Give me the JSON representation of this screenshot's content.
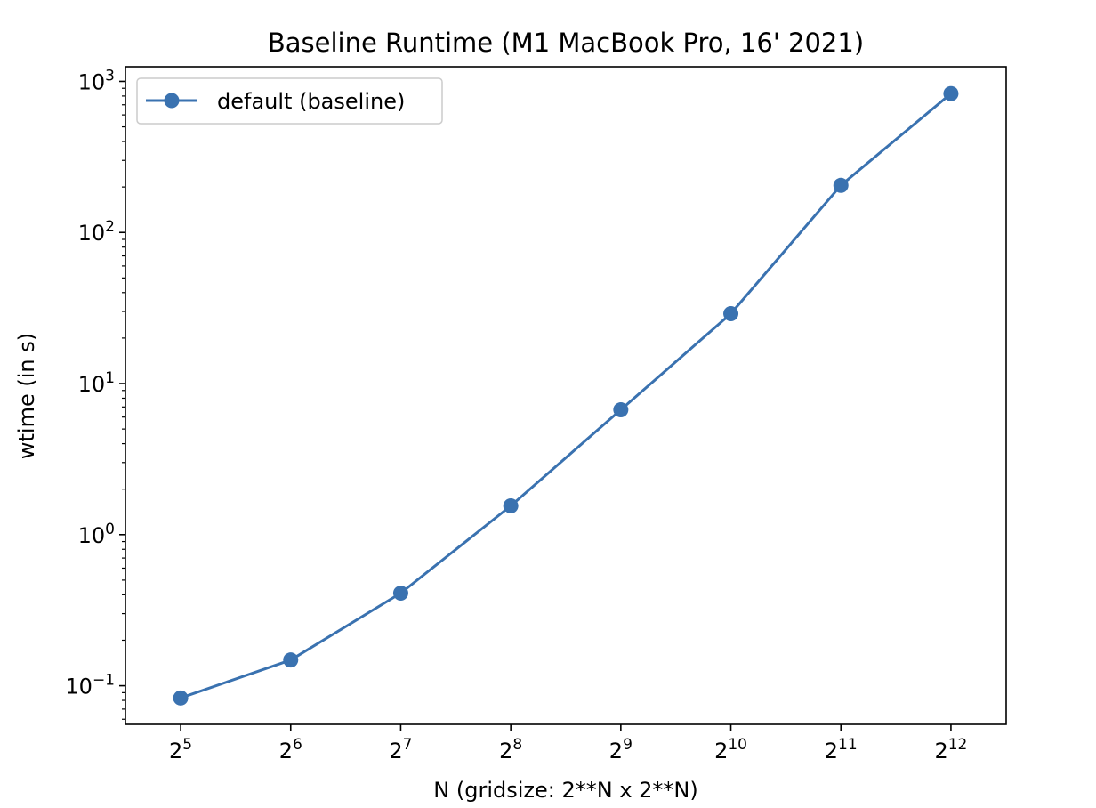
{
  "chart_data": {
    "type": "line",
    "title": "Baseline Runtime (M1 MacBook Pro, 16' 2021)",
    "xlabel": "N (gridsize: 2**N x 2**N)",
    "ylabel": "wtime (in s)",
    "x_scale": "log2",
    "y_scale": "log10",
    "x": [
      32,
      64,
      128,
      256,
      512,
      1024,
      2048,
      4096
    ],
    "x_ticks": [
      {
        "value": 32,
        "base": "2",
        "exp": "5"
      },
      {
        "value": 64,
        "base": "2",
        "exp": "6"
      },
      {
        "value": 128,
        "base": "2",
        "exp": "7"
      },
      {
        "value": 256,
        "base": "2",
        "exp": "8"
      },
      {
        "value": 512,
        "base": "2",
        "exp": "9"
      },
      {
        "value": 1024,
        "base": "2",
        "exp": "10"
      },
      {
        "value": 2048,
        "base": "2",
        "exp": "11"
      },
      {
        "value": 4096,
        "base": "2",
        "exp": "12"
      }
    ],
    "y_ticks": [
      {
        "value": 0.1,
        "base": "10",
        "exp": "−1"
      },
      {
        "value": 1,
        "base": "10",
        "exp": "0"
      },
      {
        "value": 10,
        "base": "10",
        "exp": "1"
      },
      {
        "value": 100,
        "base": "10",
        "exp": "2"
      },
      {
        "value": 1000,
        "base": "10",
        "exp": "3"
      }
    ],
    "xlim": [
      22.6,
      5800
    ],
    "ylim": [
      0.0555,
      1250
    ],
    "series": [
      {
        "name": "default (baseline)",
        "color": "#3a72b0",
        "marker": "circle",
        "values": [
          0.083,
          0.148,
          0.41,
          1.55,
          6.7,
          29,
          205,
          830
        ]
      }
    ],
    "legend_position": "upper left",
    "grid": false
  }
}
